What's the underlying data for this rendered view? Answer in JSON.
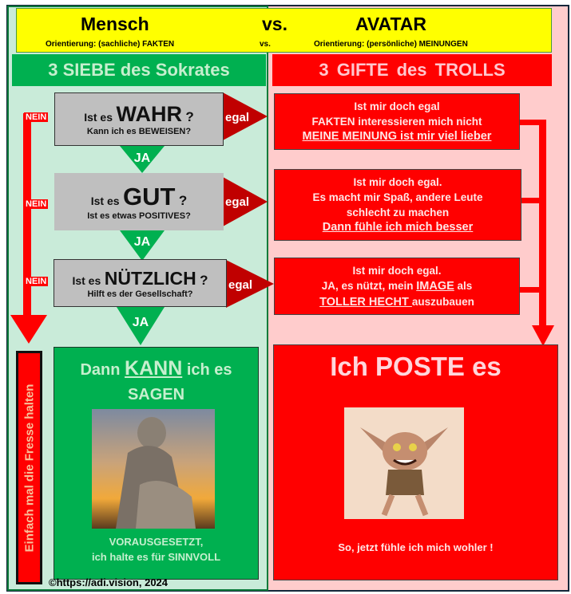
{
  "header": {
    "left_title": "Mensch",
    "vs": "vs.",
    "right_title": "AVATAR",
    "left_sub": "Orientierung: (sachliche) FAKTEN",
    "vs_sub": "vs.",
    "right_sub": "Orientierung: (persönliche) MEINUNGEN"
  },
  "left": {
    "title": "3 SIEBE des Sokrates",
    "sieves": [
      {
        "prefix": "Ist es",
        "word": "WAHR",
        "q": "?",
        "sub": "Kann ich es BEWEISEN?"
      },
      {
        "prefix": "Ist es",
        "word": "GUT",
        "q": "?",
        "sub": "Ist es etwas POSITIVES?"
      },
      {
        "prefix": "Ist es",
        "word": "NÜTZLICH",
        "q": "?",
        "sub": "Hilft es der Gesellschaft?"
      }
    ],
    "yes": "JA",
    "no": "NEIN",
    "egal": "egal",
    "silence": "Einfach mal die Fresse halten",
    "result": {
      "pre": "Dann",
      "kann": "KANN",
      "post": "ich es",
      "line2": "SAGEN",
      "cond1": "VORAUSGESETZT,",
      "cond2": "ich halte es für SINNVOLL"
    },
    "copyright": "©https://adi.vision, 2024"
  },
  "right": {
    "title": "3 GIFTE des TROLLS",
    "poisons": [
      {
        "l1": "Ist mir doch egal",
        "l2": "FAKTEN interessieren mich nicht",
        "l3": "MEINE MEINUNG ist mir viel lieber"
      },
      {
        "l1": "Ist mir doch egal.",
        "l2": "Es macht mir Spaß, andere Leute",
        "l3": "schlecht zu machen",
        "l4": "Dann fühle ich mich besser"
      },
      {
        "l1": "Ist mir doch egal.",
        "l2a": "JA, es nützt, mein ",
        "l2b": "IMAGE",
        "l2c": " als",
        "l3a": "TOLLER HECHT ",
        "l3b": "auszubauen"
      }
    ],
    "result": {
      "title": "Ich POSTE es",
      "footer": "So, jetzt fühle ich mich wohler !"
    }
  },
  "colors": {
    "green": "#00b050",
    "red": "#ff0000",
    "darkred": "#c00000",
    "yellow": "#ffff00",
    "light_green": "#c9ebd9",
    "pink": "#ffcccc"
  }
}
